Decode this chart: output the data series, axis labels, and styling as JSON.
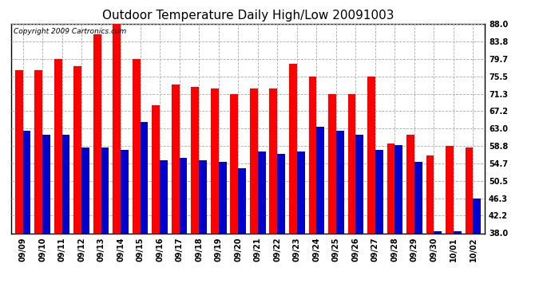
{
  "title": "Outdoor Temperature Daily High/Low 20091003",
  "copyright": "Copyright 2009 Cartronics.com",
  "dates": [
    "09/09",
    "09/10",
    "09/11",
    "09/12",
    "09/13",
    "09/14",
    "09/15",
    "09/16",
    "09/17",
    "09/18",
    "09/19",
    "09/20",
    "09/21",
    "09/22",
    "09/23",
    "09/24",
    "09/25",
    "09/26",
    "09/27",
    "09/28",
    "09/29",
    "09/30",
    "10/01",
    "10/02"
  ],
  "highs": [
    77.0,
    77.0,
    79.7,
    78.0,
    85.5,
    88.0,
    79.7,
    68.5,
    73.5,
    73.0,
    72.5,
    71.3,
    72.5,
    72.5,
    78.5,
    75.5,
    71.3,
    71.3,
    75.5,
    59.5,
    61.5,
    56.5,
    58.8,
    58.5
  ],
  "lows": [
    62.5,
    61.5,
    61.5,
    58.5,
    58.5,
    58.0,
    64.5,
    55.5,
    56.0,
    55.5,
    55.0,
    53.5,
    57.5,
    57.0,
    57.5,
    63.5,
    62.5,
    61.5,
    58.0,
    59.0,
    55.0,
    38.5,
    38.5,
    46.3
  ],
  "high_color": "#ff0000",
  "low_color": "#0000cc",
  "bg_color": "#ffffff",
  "plot_bg_color": "#ffffff",
  "grid_color": "#aaaaaa",
  "yticks": [
    38.0,
    42.2,
    46.3,
    50.5,
    54.7,
    58.8,
    63.0,
    67.2,
    71.3,
    75.5,
    79.7,
    83.8,
    88.0
  ],
  "ylim": [
    38.0,
    88.0
  ],
  "title_fontsize": 11,
  "copyright_fontsize": 6.5,
  "tick_fontsize": 7,
  "bar_width": 0.4
}
